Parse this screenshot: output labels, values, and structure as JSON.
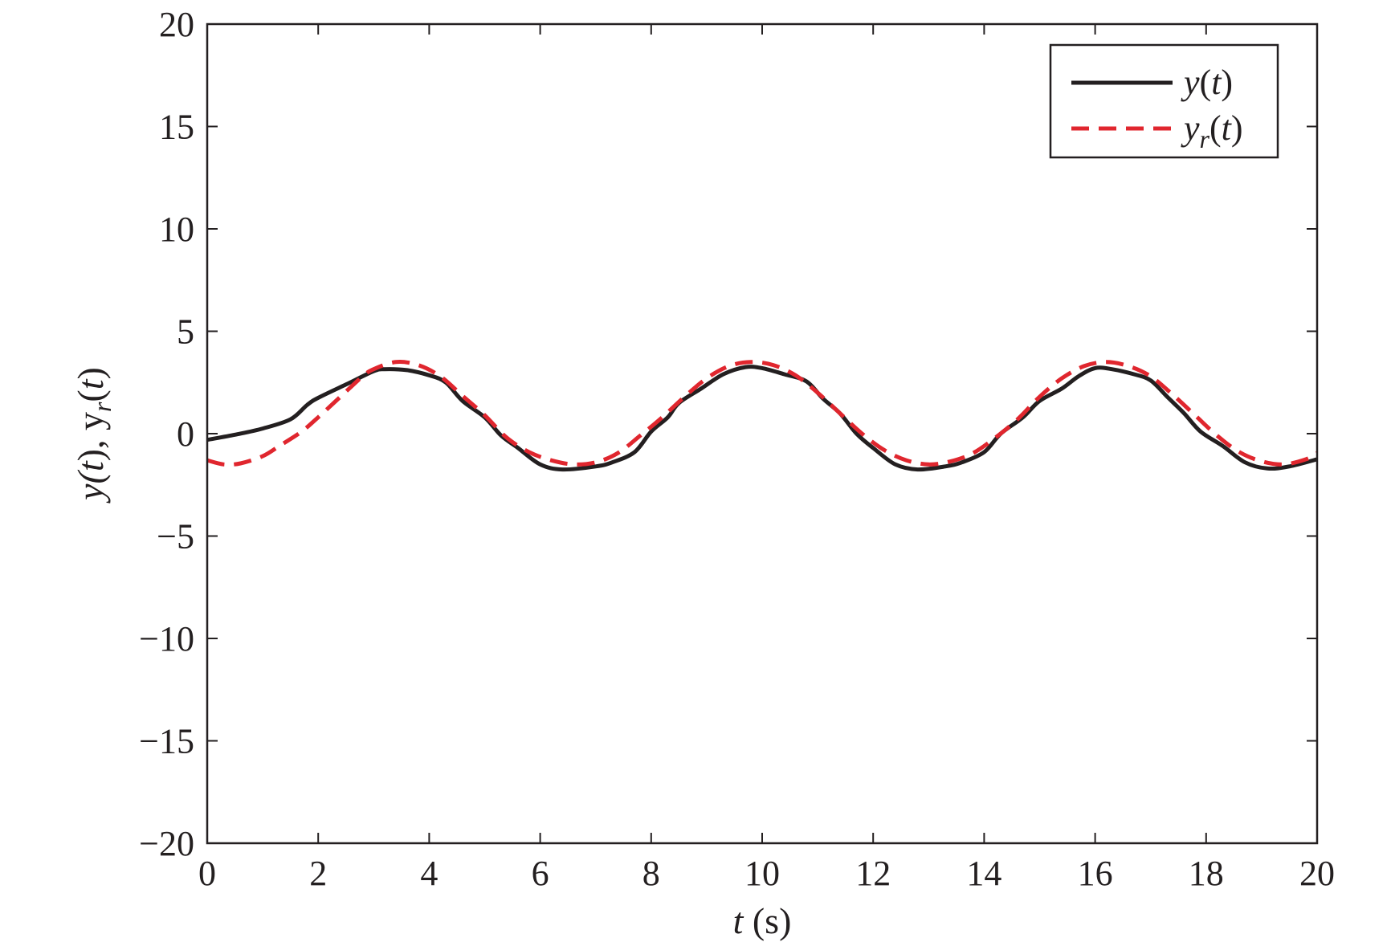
{
  "chart_data": {
    "type": "line",
    "xlabel_var": "t",
    "xlabel_unit": " (s)",
    "ylabel_parts": [
      "y(",
      "t",
      "), y",
      "r",
      "(",
      "t",
      ")"
    ],
    "xlim": [
      0,
      20
    ],
    "ylim": [
      -20,
      20
    ],
    "xticks": [
      0,
      2,
      4,
      6,
      8,
      10,
      12,
      14,
      16,
      18,
      20
    ],
    "yticks": [
      -20,
      -15,
      -10,
      -5,
      0,
      5,
      10,
      15,
      20
    ],
    "ytick_labels": [
      "−20",
      "−15",
      "−10",
      "−5",
      "0",
      "5",
      "10",
      "15",
      "20"
    ],
    "grid": false,
    "legend_position": "top-right",
    "series": [
      {
        "legend_parts": [
          "y",
          "(",
          "t",
          ")"
        ],
        "color": "#231f20",
        "dash": "solid",
        "points": [
          [
            0,
            -0.3
          ],
          [
            0.5,
            -0.05
          ],
          [
            1.0,
            0.25
          ],
          [
            1.5,
            0.7
          ],
          [
            1.8,
            1.4
          ],
          [
            2.0,
            1.75
          ],
          [
            2.5,
            2.4
          ],
          [
            3.0,
            3.05
          ],
          [
            3.2,
            3.15
          ],
          [
            3.6,
            3.1
          ],
          [
            4.0,
            2.85
          ],
          [
            4.3,
            2.5
          ],
          [
            4.6,
            1.6
          ],
          [
            5.0,
            0.8
          ],
          [
            5.3,
            -0.1
          ],
          [
            5.6,
            -0.7
          ],
          [
            6.0,
            -1.5
          ],
          [
            6.4,
            -1.75
          ],
          [
            7.0,
            -1.6
          ],
          [
            7.3,
            -1.4
          ],
          [
            7.7,
            -0.9
          ],
          [
            8.0,
            0.1
          ],
          [
            8.3,
            0.8
          ],
          [
            8.5,
            1.5
          ],
          [
            8.9,
            2.2
          ],
          [
            9.3,
            2.9
          ],
          [
            9.7,
            3.25
          ],
          [
            10.0,
            3.2
          ],
          [
            10.4,
            2.9
          ],
          [
            10.8,
            2.55
          ],
          [
            11.1,
            1.7
          ],
          [
            11.4,
            1.0
          ],
          [
            11.7,
            0.0
          ],
          [
            12.0,
            -0.7
          ],
          [
            12.4,
            -1.5
          ],
          [
            12.8,
            -1.75
          ],
          [
            13.3,
            -1.6
          ],
          [
            13.6,
            -1.4
          ],
          [
            14.0,
            -0.9
          ],
          [
            14.3,
            0.0
          ],
          [
            14.7,
            0.8
          ],
          [
            15.0,
            1.6
          ],
          [
            15.4,
            2.2
          ],
          [
            15.7,
            2.8
          ],
          [
            16.0,
            3.2
          ],
          [
            16.3,
            3.15
          ],
          [
            16.7,
            2.9
          ],
          [
            17.0,
            2.6
          ],
          [
            17.3,
            1.8
          ],
          [
            17.6,
            1.0
          ],
          [
            17.9,
            0.1
          ],
          [
            18.3,
            -0.6
          ],
          [
            18.7,
            -1.4
          ],
          [
            19.1,
            -1.7
          ],
          [
            19.5,
            -1.6
          ],
          [
            20.0,
            -1.25
          ]
        ]
      },
      {
        "legend_parts": [
          "y",
          "r",
          "(",
          "t",
          ")"
        ],
        "color": "#e0262e",
        "dash": "dashed",
        "points": [
          [
            0,
            -1.3
          ],
          [
            0.3,
            -1.5
          ],
          [
            0.6,
            -1.45
          ],
          [
            1.0,
            -1.1
          ],
          [
            1.3,
            -0.6
          ],
          [
            1.7,
            0.1
          ],
          [
            2.0,
            0.8
          ],
          [
            2.4,
            1.8
          ],
          [
            2.8,
            2.8
          ],
          [
            3.0,
            3.15
          ],
          [
            3.4,
            3.5
          ],
          [
            3.8,
            3.35
          ],
          [
            4.2,
            2.8
          ],
          [
            4.6,
            1.85
          ],
          [
            5.0,
            0.9
          ],
          [
            5.4,
            -0.2
          ],
          [
            5.8,
            -0.9
          ],
          [
            6.2,
            -1.3
          ],
          [
            6.6,
            -1.5
          ],
          [
            7.0,
            -1.4
          ],
          [
            7.4,
            -0.95
          ],
          [
            7.8,
            -0.1
          ],
          [
            8.2,
            0.8
          ],
          [
            8.6,
            1.8
          ],
          [
            9.0,
            2.7
          ],
          [
            9.4,
            3.3
          ],
          [
            9.8,
            3.5
          ],
          [
            10.2,
            3.35
          ],
          [
            10.6,
            2.85
          ],
          [
            11.0,
            2.0
          ],
          [
            11.4,
            1.0
          ],
          [
            11.8,
            0.0
          ],
          [
            12.2,
            -0.8
          ],
          [
            12.6,
            -1.3
          ],
          [
            13.0,
            -1.5
          ],
          [
            13.4,
            -1.35
          ],
          [
            13.8,
            -0.95
          ],
          [
            14.2,
            -0.2
          ],
          [
            14.6,
            0.7
          ],
          [
            15.0,
            1.8
          ],
          [
            15.4,
            2.7
          ],
          [
            15.8,
            3.3
          ],
          [
            16.2,
            3.5
          ],
          [
            16.6,
            3.3
          ],
          [
            17.0,
            2.8
          ],
          [
            17.4,
            1.9
          ],
          [
            17.8,
            0.9
          ],
          [
            18.2,
            -0.1
          ],
          [
            18.6,
            -0.9
          ],
          [
            19.0,
            -1.35
          ],
          [
            19.4,
            -1.5
          ],
          [
            19.8,
            -1.25
          ],
          [
            20.0,
            -0.95
          ]
        ]
      }
    ]
  }
}
